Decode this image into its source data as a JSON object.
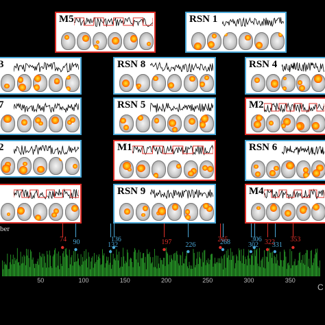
{
  "panels": [
    {
      "id": "m5",
      "label": "M5",
      "color": "red",
      "x": 80,
      "y": 17,
      "w": 147,
      "h": 60,
      "brains": 6
    },
    {
      "id": "rsn1",
      "label": "RSN 1",
      "color": "blue",
      "x": 270,
      "y": 17,
      "w": 148,
      "h": 60,
      "brains": 6
    },
    {
      "id": "p3",
      "label": "3",
      "color": "blue",
      "x": -8,
      "y": 83,
      "w": 127,
      "h": 55,
      "brains": 5
    },
    {
      "id": "rsn8",
      "label": "RSN 8",
      "color": "blue",
      "x": 165,
      "y": 83,
      "w": 150,
      "h": 55,
      "brains": 6
    },
    {
      "id": "rsn4",
      "label": "RSN 4",
      "color": "blue",
      "x": 357,
      "y": 83,
      "w": 120,
      "h": 55,
      "brains": 5
    },
    {
      "id": "p7",
      "label": "7",
      "color": "blue",
      "x": -8,
      "y": 142,
      "w": 127,
      "h": 55,
      "brains": 5
    },
    {
      "id": "rsn5",
      "label": "RSN 5",
      "color": "blue",
      "x": 165,
      "y": 142,
      "w": 150,
      "h": 55,
      "brains": 6
    },
    {
      "id": "m2",
      "label": "M2",
      "color": "red",
      "x": 357,
      "y": 142,
      "w": 120,
      "h": 55,
      "brains": 5
    },
    {
      "id": "p2",
      "label": "2",
      "color": "blue",
      "x": -8,
      "y": 204,
      "w": 127,
      "h": 55,
      "brains": 5
    },
    {
      "id": "m1",
      "label": "M1",
      "color": "red",
      "x": 165,
      "y": 204,
      "w": 150,
      "h": 60,
      "brains": 6
    },
    {
      "id": "rsn6",
      "label": "RSN 6",
      "color": "blue",
      "x": 357,
      "y": 204,
      "w": 120,
      "h": 60,
      "brains": 5
    },
    {
      "id": "p_red",
      "label": "",
      "color": "red",
      "x": -8,
      "y": 268,
      "w": 127,
      "h": 58,
      "brains": 5
    },
    {
      "id": "rsn9",
      "label": "RSN 9",
      "color": "blue",
      "x": 165,
      "y": 268,
      "w": 150,
      "h": 58,
      "brains": 6
    },
    {
      "id": "m4",
      "label": "M4",
      "color": "red",
      "x": 357,
      "y": 268,
      "w": 120,
      "h": 58,
      "brains": 5
    }
  ],
  "axis": {
    "left_label": "ber",
    "right_label": "C",
    "ticks": [
      "50",
      "100",
      "150",
      "200",
      "250",
      "300",
      "350"
    ]
  },
  "markers": [
    {
      "value": "74",
      "color": "red"
    },
    {
      "value": "90",
      "color": "blue"
    },
    {
      "value": "132",
      "color": "blue"
    },
    {
      "value": "136",
      "color": "blue"
    },
    {
      "value": "197",
      "color": "red"
    },
    {
      "value": "226",
      "color": "blue"
    },
    {
      "value": "265",
      "color": "red"
    },
    {
      "value": "268",
      "color": "blue"
    },
    {
      "value": "302",
      "color": "blue"
    },
    {
      "value": "306",
      "color": "blue"
    },
    {
      "value": "322",
      "color": "red"
    },
    {
      "value": "331",
      "color": "blue"
    },
    {
      "value": "353",
      "color": "red"
    }
  ],
  "colors": {
    "red": "#e0302a",
    "blue": "#4aa8d8",
    "bar": "#2eae2e"
  }
}
